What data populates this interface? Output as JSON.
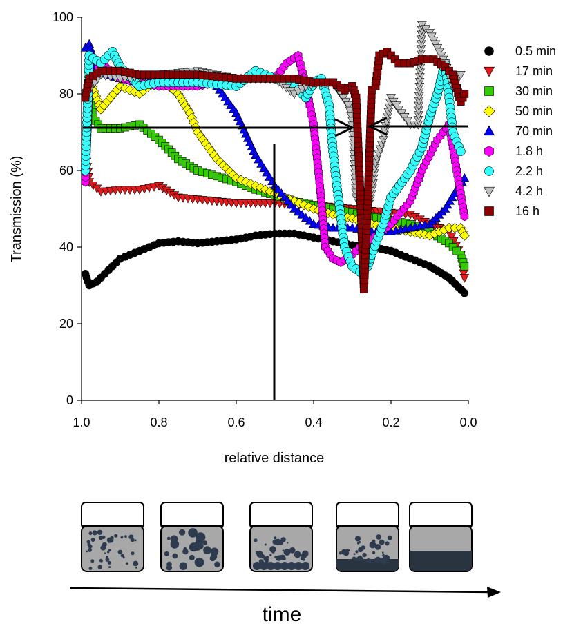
{
  "chart_data": {
    "type": "scatter",
    "xlabel": "relative distance",
    "ylabel": "Transmission (%)",
    "xlim": [
      1.0,
      0.0
    ],
    "ylim": [
      0,
      100
    ],
    "x_reversed": true,
    "xticks": [
      "1.0",
      "0.8",
      "0.6",
      "0.4",
      "0.2",
      "0.0"
    ],
    "yticks": [
      "0",
      "20",
      "40",
      "60",
      "80",
      "100"
    ],
    "grid": false,
    "legend_position": "right",
    "series": [
      {
        "name": "0.5 min",
        "marker": "circle",
        "color": "#000000",
        "points": [
          [
            0.99,
            33
          ],
          [
            0.98,
            30
          ],
          [
            0.96,
            31
          ],
          [
            0.93,
            34
          ],
          [
            0.9,
            37
          ],
          [
            0.85,
            39
          ],
          [
            0.8,
            41
          ],
          [
            0.75,
            41.5
          ],
          [
            0.7,
            41
          ],
          [
            0.65,
            41.5
          ],
          [
            0.6,
            42
          ],
          [
            0.55,
            43
          ],
          [
            0.5,
            43.5
          ],
          [
            0.45,
            43.5
          ],
          [
            0.4,
            42.5
          ],
          [
            0.35,
            41.5
          ],
          [
            0.3,
            40.5
          ],
          [
            0.25,
            40
          ],
          [
            0.2,
            39
          ],
          [
            0.15,
            37
          ],
          [
            0.1,
            35
          ],
          [
            0.05,
            32
          ],
          [
            0.01,
            28
          ]
        ]
      },
      {
        "name": "17 min",
        "marker": "triangle-down",
        "color": "#e31a1c",
        "points": [
          [
            0.99,
            65
          ],
          [
            0.98,
            57
          ],
          [
            0.95,
            54.5
          ],
          [
            0.9,
            55
          ],
          [
            0.85,
            55
          ],
          [
            0.8,
            56
          ],
          [
            0.75,
            53
          ],
          [
            0.7,
            52.5
          ],
          [
            0.65,
            52
          ],
          [
            0.6,
            51.5
          ],
          [
            0.55,
            51.5
          ],
          [
            0.5,
            51.5
          ],
          [
            0.45,
            51
          ],
          [
            0.4,
            51
          ],
          [
            0.35,
            50.5
          ],
          [
            0.3,
            50
          ],
          [
            0.25,
            49.5
          ],
          [
            0.2,
            49
          ],
          [
            0.15,
            48.5
          ],
          [
            0.1,
            46
          ],
          [
            0.05,
            44
          ],
          [
            0.02,
            38
          ],
          [
            0.01,
            32
          ]
        ]
      },
      {
        "name": "30 min",
        "marker": "square",
        "color": "#33cc00",
        "points": [
          [
            0.99,
            62
          ],
          [
            0.98,
            80
          ],
          [
            0.97,
            74
          ],
          [
            0.95,
            71
          ],
          [
            0.9,
            71
          ],
          [
            0.85,
            72
          ],
          [
            0.8,
            68
          ],
          [
            0.75,
            63
          ],
          [
            0.7,
            60
          ],
          [
            0.65,
            58.5
          ],
          [
            0.6,
            57
          ],
          [
            0.55,
            55
          ],
          [
            0.5,
            53.5
          ],
          [
            0.45,
            52
          ],
          [
            0.4,
            51
          ],
          [
            0.35,
            50
          ],
          [
            0.3,
            49
          ],
          [
            0.25,
            48
          ],
          [
            0.2,
            47
          ],
          [
            0.15,
            46
          ],
          [
            0.1,
            44
          ],
          [
            0.05,
            41
          ],
          [
            0.02,
            38
          ],
          [
            0.01,
            35
          ]
        ]
      },
      {
        "name": "50 min",
        "marker": "diamond",
        "color": "#ffff00",
        "points": [
          [
            0.98,
            84
          ],
          [
            0.95,
            76
          ],
          [
            0.9,
            82
          ],
          [
            0.85,
            80
          ],
          [
            0.8,
            84
          ],
          [
            0.75,
            80
          ],
          [
            0.72,
            75
          ],
          [
            0.7,
            70
          ],
          [
            0.65,
            63
          ],
          [
            0.6,
            58
          ],
          [
            0.55,
            56
          ],
          [
            0.5,
            54
          ],
          [
            0.45,
            52
          ],
          [
            0.4,
            50
          ],
          [
            0.35,
            48.5
          ],
          [
            0.3,
            47.5
          ],
          [
            0.25,
            46
          ],
          [
            0.2,
            45
          ],
          [
            0.15,
            44
          ],
          [
            0.1,
            43
          ],
          [
            0.05,
            45
          ],
          [
            0.02,
            45
          ],
          [
            0.01,
            43
          ]
        ]
      },
      {
        "name": "70 min",
        "marker": "triangle-up",
        "color": "#0000ff",
        "points": [
          [
            0.99,
            92
          ],
          [
            0.98,
            93
          ],
          [
            0.96,
            86
          ],
          [
            0.9,
            84
          ],
          [
            0.85,
            83
          ],
          [
            0.8,
            84
          ],
          [
            0.75,
            84
          ],
          [
            0.7,
            84
          ],
          [
            0.65,
            82
          ],
          [
            0.6,
            75
          ],
          [
            0.55,
            64
          ],
          [
            0.5,
            56
          ],
          [
            0.45,
            50
          ],
          [
            0.4,
            46
          ],
          [
            0.35,
            45
          ],
          [
            0.3,
            45
          ],
          [
            0.25,
            44
          ],
          [
            0.2,
            44
          ],
          [
            0.15,
            45
          ],
          [
            0.1,
            46
          ],
          [
            0.06,
            50
          ],
          [
            0.03,
            55
          ],
          [
            0.01,
            58
          ]
        ]
      },
      {
        "name": "1.8 h",
        "marker": "hexagon",
        "color": "#ff00ff",
        "points": [
          [
            0.99,
            57
          ],
          [
            0.98,
            82
          ],
          [
            0.95,
            88
          ],
          [
            0.9,
            84
          ],
          [
            0.85,
            83
          ],
          [
            0.8,
            82
          ],
          [
            0.7,
            82
          ],
          [
            0.6,
            84
          ],
          [
            0.5,
            84
          ],
          [
            0.47,
            88
          ],
          [
            0.44,
            90
          ],
          [
            0.42,
            82
          ],
          [
            0.4,
            72
          ],
          [
            0.38,
            52
          ],
          [
            0.37,
            40
          ],
          [
            0.35,
            37
          ],
          [
            0.33,
            36
          ],
          [
            0.3,
            38
          ],
          [
            0.28,
            40
          ],
          [
            0.25,
            42
          ],
          [
            0.2,
            46
          ],
          [
            0.15,
            52
          ],
          [
            0.12,
            60
          ],
          [
            0.08,
            68
          ],
          [
            0.05,
            72
          ],
          [
            0.03,
            60
          ],
          [
            0.01,
            48
          ]
        ]
      },
      {
        "name": "2.2 h",
        "marker": "circle",
        "color": "#33ffff",
        "points": [
          [
            0.99,
            60
          ],
          [
            0.98,
            90
          ],
          [
            0.95,
            88
          ],
          [
            0.92,
            91
          ],
          [
            0.9,
            87
          ],
          [
            0.85,
            82
          ],
          [
            0.8,
            83
          ],
          [
            0.7,
            83
          ],
          [
            0.6,
            82
          ],
          [
            0.55,
            86
          ],
          [
            0.5,
            84
          ],
          [
            0.45,
            82
          ],
          [
            0.42,
            79
          ],
          [
            0.4,
            83
          ],
          [
            0.38,
            84
          ],
          [
            0.36,
            77
          ],
          [
            0.35,
            65
          ],
          [
            0.34,
            56
          ],
          [
            0.32,
            40
          ],
          [
            0.3,
            35
          ],
          [
            0.28,
            33.5
          ],
          [
            0.26,
            35
          ],
          [
            0.25,
            38
          ],
          [
            0.22,
            46
          ],
          [
            0.2,
            53
          ],
          [
            0.15,
            60
          ],
          [
            0.12,
            66
          ],
          [
            0.1,
            74
          ],
          [
            0.08,
            80
          ],
          [
            0.06,
            88
          ],
          [
            0.04,
            70
          ],
          [
            0.02,
            65
          ]
        ]
      },
      {
        "name": "4.2 h",
        "marker": "triangle-down",
        "color": "#c0c0c0",
        "points": [
          [
            0.99,
            80
          ],
          [
            0.95,
            85
          ],
          [
            0.9,
            84
          ],
          [
            0.8,
            85
          ],
          [
            0.7,
            86
          ],
          [
            0.6,
            84
          ],
          [
            0.5,
            84
          ],
          [
            0.45,
            80
          ],
          [
            0.42,
            82
          ],
          [
            0.38,
            83
          ],
          [
            0.35,
            83
          ],
          [
            0.33,
            80
          ],
          [
            0.31,
            77
          ],
          [
            0.3,
            73
          ],
          [
            0.29,
            53
          ],
          [
            0.28,
            51
          ],
          [
            0.27,
            47
          ],
          [
            0.26,
            50
          ],
          [
            0.25,
            54
          ],
          [
            0.24,
            62
          ],
          [
            0.22,
            68
          ],
          [
            0.2,
            79
          ],
          [
            0.18,
            76
          ],
          [
            0.15,
            72
          ],
          [
            0.13,
            72
          ],
          [
            0.12,
            98
          ],
          [
            0.1,
            96
          ],
          [
            0.08,
            92
          ],
          [
            0.06,
            88
          ],
          [
            0.04,
            82
          ],
          [
            0.02,
            85
          ]
        ]
      },
      {
        "name": "16 h",
        "marker": "square",
        "color": "#8b0000",
        "points": [
          [
            0.99,
            79
          ],
          [
            0.98,
            84
          ],
          [
            0.95,
            86
          ],
          [
            0.9,
            86
          ],
          [
            0.85,
            85
          ],
          [
            0.8,
            85
          ],
          [
            0.7,
            85
          ],
          [
            0.6,
            84
          ],
          [
            0.5,
            84
          ],
          [
            0.45,
            84
          ],
          [
            0.4,
            83
          ],
          [
            0.35,
            83
          ],
          [
            0.32,
            81
          ],
          [
            0.3,
            82
          ],
          [
            0.29,
            79
          ],
          [
            0.28,
            55
          ],
          [
            0.27,
            29
          ],
          [
            0.26,
            52
          ],
          [
            0.25,
            81
          ],
          [
            0.24,
            82
          ],
          [
            0.23,
            90
          ],
          [
            0.21,
            91
          ],
          [
            0.18,
            88
          ],
          [
            0.15,
            88
          ],
          [
            0.12,
            89
          ],
          [
            0.09,
            89
          ],
          [
            0.06,
            87
          ],
          [
            0.04,
            85
          ],
          [
            0.02,
            78
          ],
          [
            0.01,
            80
          ]
        ]
      }
    ]
  },
  "footer": {
    "axis_label": "time"
  }
}
